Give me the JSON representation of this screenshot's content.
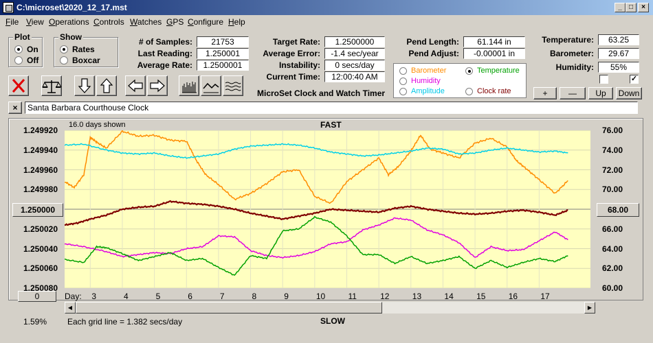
{
  "window": {
    "title": "C:\\microset\\2020_12_17.mst"
  },
  "menu": [
    "File",
    "View",
    "Operations",
    "Controls",
    "Watches",
    "GPS",
    "Configure",
    "Help"
  ],
  "plot_group": {
    "label": "Plot",
    "on": "On",
    "off": "Off",
    "selected": "On"
  },
  "show_group": {
    "label": "Show",
    "rates": "Rates",
    "boxcar": "Boxcar",
    "selected": "Rates"
  },
  "stats": {
    "samples_label": "# of Samples:",
    "samples": "21753",
    "last_label": "Last Reading:",
    "last": "1.250001",
    "avg_rate_label": "Average Rate:",
    "avg_rate": "1.2500001",
    "target_label": "Target Rate:",
    "target": "1.2500000",
    "avg_err_label": "Average Error:",
    "avg_err": "-1.4 sec/year",
    "instab_label": "Instability:",
    "instab": "0 secs/day",
    "time_label": "Current Time:",
    "time": "12:00:40 AM",
    "pend_len_label": "Pend Length:",
    "pend_len": "61.144 in",
    "pend_adj_label": "Pend Adjust:",
    "pend_adj": "-0.00001 in",
    "temp_label": "Temperature:",
    "temp": "63.25",
    "baro_label": "Barometer:",
    "baro": "29.67",
    "hum_label": "Humidity:",
    "hum": "55%"
  },
  "app_subtitle": "MicroSet Clock and Watch Timer",
  "aux_legend": {
    "barometer": "Barometer",
    "temperature": "Temperature",
    "humidity": "Humidity",
    "amplitude": "Amplitude",
    "clock_rate": "Clock rate",
    "selected": "Temperature",
    "colors": {
      "barometer": "#ff8c00",
      "temperature": "#00a000",
      "humidity": "#e000e0",
      "amplitude": "#00c8e8",
      "clock_rate": "#800000"
    }
  },
  "adjust_buttons": {
    "plus": "+",
    "minus": "—",
    "up": "Up",
    "down": "Down"
  },
  "checkboxes": [
    {
      "checked": false
    },
    {
      "checked": true
    }
  ],
  "clock_name": "Santa Barbara Courthouse Clock",
  "graph": {
    "days_shown": "16.0 days shown",
    "top_label": "FAST",
    "bottom_label": "SLOW",
    "grid_note": "Each grid line = 1.382 secs/day",
    "percent": "1.59%",
    "left_center_value": "1.250000",
    "right_center_value": "68.00",
    "left_bottom_button": "0",
    "day_prefix": "Day:"
  },
  "chart_data": {
    "type": "line",
    "y_left": {
      "ticks": [
        "1.249920",
        "1.249940",
        "1.249960",
        "1.249980",
        "1.250000",
        "1.250020",
        "1.250040",
        "1.250060",
        "1.250080"
      ],
      "range": [
        1.24992,
        1.25008
      ]
    },
    "y_right": {
      "ticks": [
        "76.00",
        "74.00",
        "72.00",
        "70.00",
        "68.00",
        "66.00",
        "64.00",
        "62.00",
        "60.00"
      ],
      "range": [
        60,
        76
      ]
    },
    "x_days": [
      "3",
      "4",
      "5",
      "6",
      "7",
      "8",
      "9",
      "10",
      "11",
      "12",
      "13",
      "14",
      "15",
      "16",
      "17"
    ],
    "x_range": [
      2.2,
      18.6
    ],
    "series": [
      {
        "axis": "left",
        "color": "#800000",
        "x": [
          2.2,
          2.6,
          3,
          3.5,
          4,
          4.5,
          5,
          5.5,
          6,
          6.5,
          7,
          7.5,
          8,
          8.5,
          9,
          9.5,
          10,
          10.5,
          11,
          11.5,
          12,
          12.5,
          13,
          13.5,
          14,
          14.5,
          15,
          15.5,
          16,
          16.5,
          17,
          17.5,
          17.9
        ],
        "values": [
          1.250016,
          1.250014,
          1.25001,
          1.250006,
          1.25,
          1.249998,
          1.249997,
          1.249992,
          1.249994,
          1.249995,
          1.249997,
          1.25,
          1.250004,
          1.250007,
          1.25001,
          1.250007,
          1.250004,
          1.25,
          1.250001,
          1.250002,
          1.250003,
          1.249999,
          1.249997,
          1.25,
          1.250002,
          1.250004,
          1.250005,
          1.250004,
          1.250002,
          1.250001,
          1.250003,
          1.250006,
          1.250001
        ]
      },
      {
        "axis": "right",
        "color": "#ff8c00",
        "x": [
          2.2,
          2.5,
          2.8,
          3,
          3.2,
          3.5,
          4,
          4.5,
          5,
          5.5,
          6,
          6.3,
          6.6,
          7,
          7.5,
          8,
          8.5,
          9,
          9.5,
          10,
          10.5,
          11,
          11.5,
          12,
          12.3,
          12.6,
          13,
          13.3,
          13.6,
          14,
          14.5,
          15,
          15.5,
          16,
          16.3,
          16.6,
          17,
          17.5,
          17.9
        ],
        "values": [
          70.8,
          70.2,
          71.5,
          75.3,
          74.8,
          74.2,
          75.9,
          75.4,
          75.5,
          75.0,
          74.9,
          73.0,
          71.5,
          70.5,
          69.0,
          69.6,
          70.6,
          71.8,
          72.0,
          69.3,
          68.6,
          70.8,
          72.0,
          73.2,
          71.5,
          72.3,
          73.9,
          75.5,
          74.1,
          73.7,
          73.2,
          74.7,
          75.2,
          74.3,
          72.9,
          72.1,
          71.0,
          69.6,
          70.9
        ]
      },
      {
        "axis": "right",
        "color": "#00d0e8",
        "x": [
          2.2,
          2.8,
          3.5,
          4,
          4.5,
          5,
          5.5,
          6,
          6.5,
          7,
          7.5,
          8,
          8.5,
          9,
          9.5,
          10,
          10.5,
          11,
          11.5,
          12,
          12.5,
          13,
          13.5,
          14,
          14.5,
          15,
          15.5,
          16,
          16.5,
          17,
          17.5,
          17.9
        ],
        "values": [
          74.5,
          74.6,
          74.0,
          73.7,
          73.6,
          73.7,
          73.4,
          73.2,
          73.4,
          73.6,
          74.1,
          74.4,
          74.5,
          74.6,
          74.5,
          74.2,
          73.8,
          73.6,
          73.4,
          73.5,
          73.7,
          73.9,
          74.2,
          74.1,
          73.6,
          73.7,
          74.0,
          74.2,
          74.0,
          73.8,
          73.9,
          73.7
        ]
      },
      {
        "axis": "right",
        "color": "#e000e0",
        "x": [
          2.2,
          2.8,
          3.5,
          4,
          4.5,
          5,
          5.5,
          6,
          6.5,
          7,
          7.5,
          8,
          8.5,
          9,
          9.5,
          10,
          10.5,
          11,
          11.5,
          12,
          12.5,
          13,
          13.5,
          14,
          14.5,
          15,
          15.5,
          16,
          16.5,
          17,
          17.5,
          17.9
        ],
        "values": [
          64.5,
          64.2,
          63.7,
          63.2,
          63.4,
          63.6,
          63.5,
          64.0,
          64.2,
          65.3,
          65.2,
          63.8,
          63.3,
          63.1,
          63.3,
          63.7,
          64.5,
          64.7,
          65.9,
          66.4,
          67.1,
          66.9,
          65.9,
          65.4,
          64.6,
          63.1,
          64.2,
          63.8,
          63.9,
          64.8,
          65.7,
          64.9
        ]
      },
      {
        "axis": "right",
        "color": "#00a000",
        "x": [
          2.2,
          2.8,
          3.2,
          3.5,
          4,
          4.5,
          5,
          5.5,
          6,
          6.5,
          7,
          7.5,
          8,
          8.5,
          9,
          9.5,
          10,
          10.5,
          11,
          11.5,
          12,
          12.5,
          13,
          13.5,
          14,
          14.5,
          15,
          15.5,
          16,
          16.5,
          17,
          17.5,
          17.9
        ],
        "values": [
          62.9,
          62.6,
          64.2,
          64.1,
          63.5,
          62.8,
          63.2,
          63.6,
          62.8,
          63.0,
          62.1,
          61.3,
          63.3,
          63.0,
          65.8,
          66.0,
          67.2,
          66.7,
          65.3,
          63.4,
          63.4,
          62.5,
          63.2,
          62.5,
          62.8,
          63.2,
          62.0,
          62.8,
          62.1,
          62.6,
          63.0,
          62.7,
          63.3
        ]
      }
    ]
  }
}
